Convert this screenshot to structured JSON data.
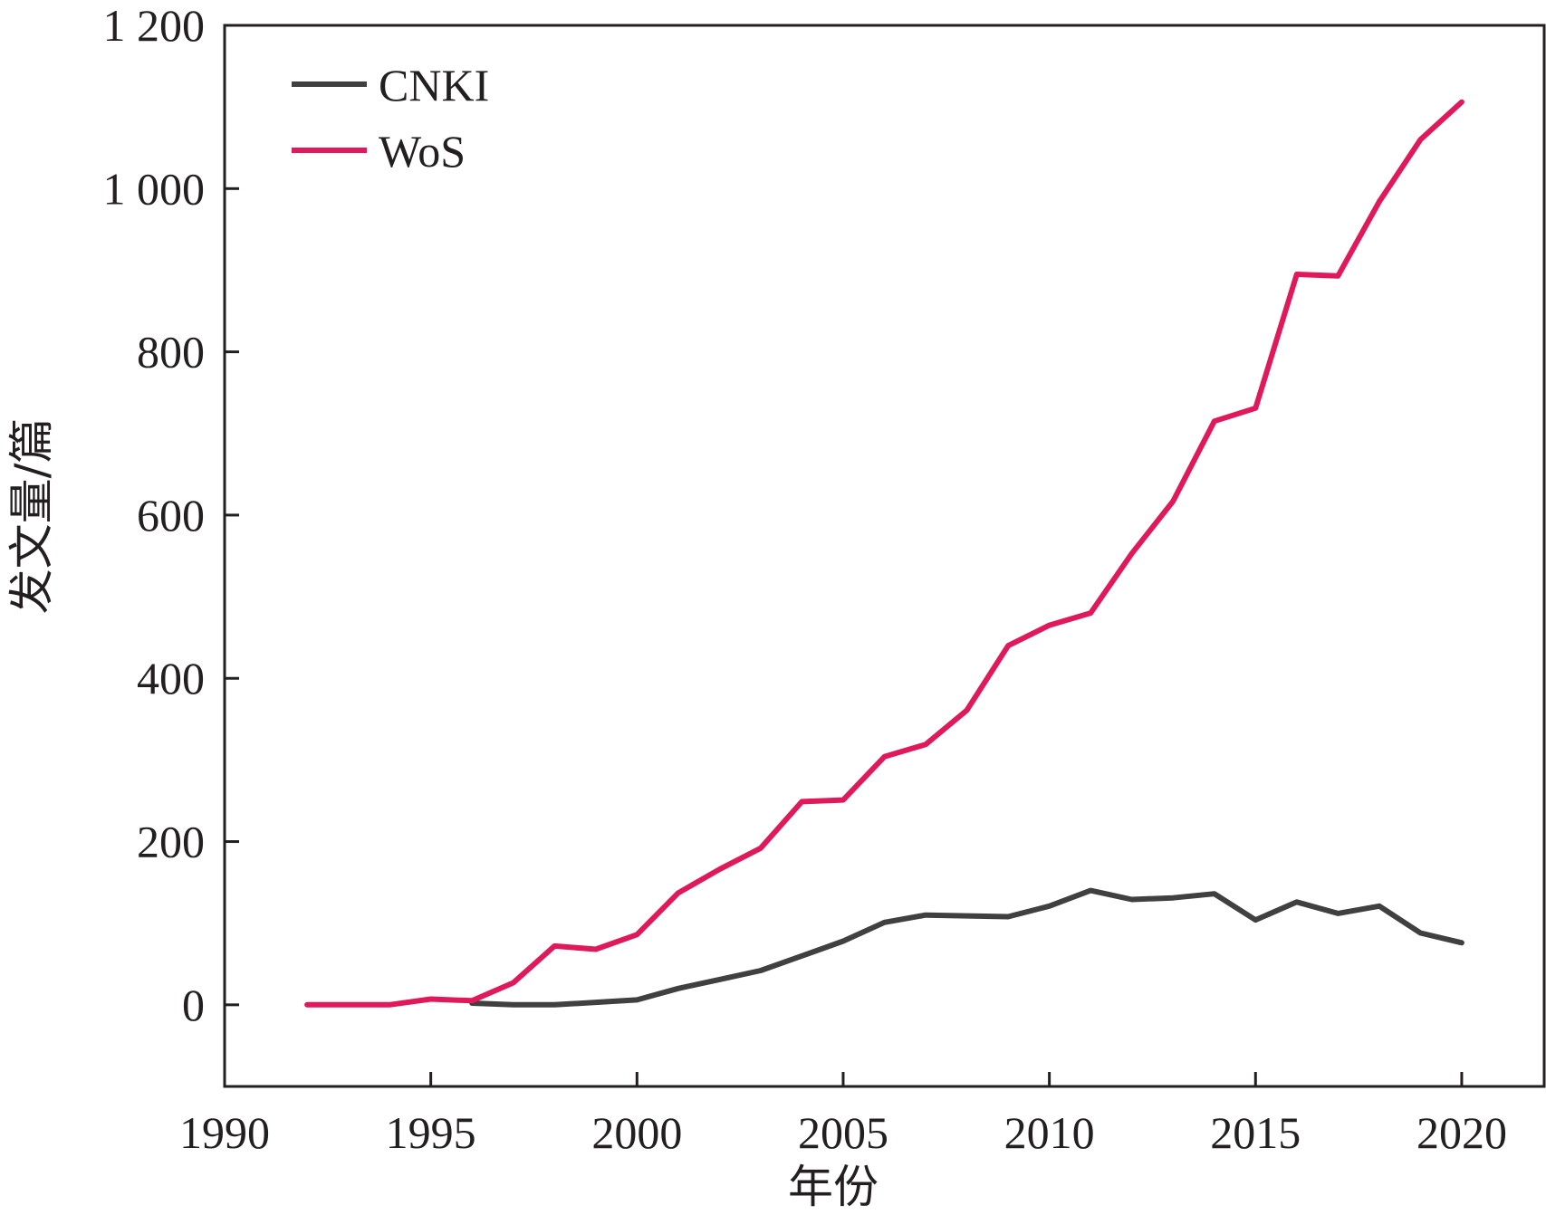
{
  "chart_data": {
    "type": "line",
    "title": "",
    "xlabel": "年份",
    "ylabel": "发文量/篇",
    "xlim": [
      1990,
      2022
    ],
    "ylim": [
      -100,
      1200
    ],
    "x_ticks": [
      1990,
      1995,
      2000,
      2005,
      2010,
      2015,
      2020
    ],
    "x_tick_labels": [
      "1990",
      "1995",
      "2000",
      "2005",
      "2010",
      "2015",
      "2020"
    ],
    "y_ticks": [
      0,
      200,
      400,
      600,
      800,
      1000,
      1200
    ],
    "y_tick_labels": [
      "0",
      "200",
      "400",
      "600",
      "800",
      "1 000",
      "1 200"
    ],
    "grid": false,
    "legend_position": "top-left",
    "series": [
      {
        "name": "CNKI",
        "color": "#404040",
        "x": [
          1996,
          1997,
          1998,
          1999,
          2000,
          2001,
          2002,
          2003,
          2004,
          2005,
          2006,
          2007,
          2008,
          2009,
          2010,
          2011,
          2012,
          2013,
          2014,
          2015,
          2016,
          2017,
          2018,
          2019,
          2020
        ],
        "values": [
          2,
          0,
          0,
          3,
          6,
          20,
          31,
          42,
          60,
          78,
          101,
          110,
          109,
          108,
          121,
          140,
          129,
          131,
          136,
          104,
          126,
          112,
          121,
          88,
          76
        ]
      },
      {
        "name": "WoS",
        "color": "#e0195a",
        "x": [
          1992,
          1993,
          1994,
          1995,
          1996,
          1997,
          1998,
          1999,
          2000,
          2001,
          2002,
          2003,
          2004,
          2005,
          2006,
          2007,
          2008,
          2009,
          2010,
          2011,
          2012,
          2013,
          2014,
          2015,
          2016,
          2017,
          2018,
          2019,
          2020
        ],
        "values": [
          0,
          0,
          0,
          7,
          5,
          27,
          72,
          68,
          86,
          137,
          166,
          192,
          249,
          251,
          304,
          319,
          361,
          440,
          465,
          480,
          553,
          617,
          715,
          731,
          895,
          893,
          984,
          1060,
          1106
        ]
      }
    ]
  }
}
